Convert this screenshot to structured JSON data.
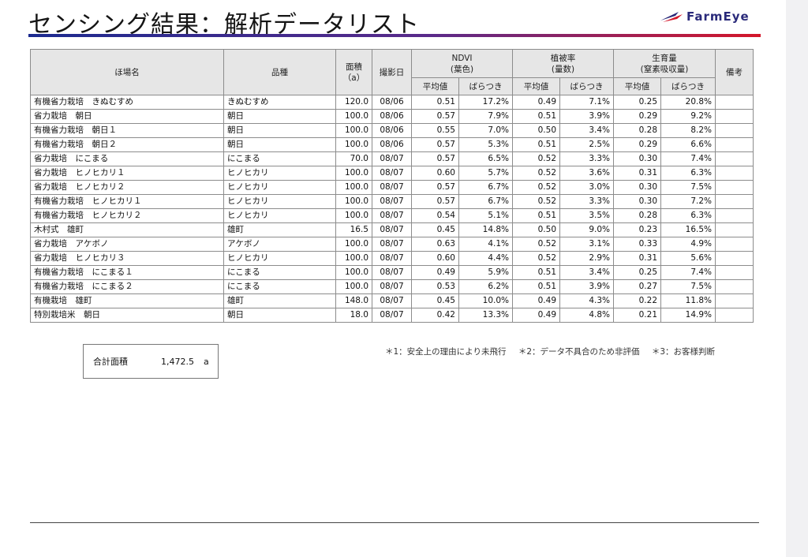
{
  "title": "センシング結果：解析データリスト",
  "logo_text": "FarmEye",
  "colors": {
    "ndvi": "#1d9a3a",
    "cover": "#f18a14",
    "growth": "#1f63c2"
  },
  "headers": {
    "field": "ほ場名",
    "variety": "品種",
    "area": "面積\n（a）",
    "date": "撮影日",
    "ndvi": "NDVI\n(葉色)",
    "cover": "植被率\n(量数)",
    "growth": "生育量\n(窒素吸収量)",
    "remarks": "備考",
    "avg": "平均値",
    "var": "ばらつき"
  },
  "rows": [
    {
      "field": "有機省力栽培　きぬむすめ",
      "variety": "きぬむすめ",
      "area": "120.0",
      "date": "08/06",
      "ndvi_avg": "0.51",
      "ndvi_var": "17.2%",
      "cover_avg": "0.49",
      "cover_var": "7.1%",
      "growth_avg": "0.25",
      "growth_var": "20.8%"
    },
    {
      "field": "省力栽培　朝日",
      "variety": "朝日",
      "area": "100.0",
      "date": "08/06",
      "ndvi_avg": "0.57",
      "ndvi_var": "7.9%",
      "cover_avg": "0.51",
      "cover_var": "3.9%",
      "growth_avg": "0.29",
      "growth_var": "9.2%"
    },
    {
      "field": "有機省力栽培　朝日１",
      "variety": "朝日",
      "area": "100.0",
      "date": "08/06",
      "ndvi_avg": "0.55",
      "ndvi_var": "7.0%",
      "cover_avg": "0.50",
      "cover_var": "3.4%",
      "growth_avg": "0.28",
      "growth_var": "8.2%"
    },
    {
      "field": "有機省力栽培　朝日２",
      "variety": "朝日",
      "area": "100.0",
      "date": "08/06",
      "ndvi_avg": "0.57",
      "ndvi_var": "5.3%",
      "cover_avg": "0.51",
      "cover_var": "2.5%",
      "growth_avg": "0.29",
      "growth_var": "6.6%"
    },
    {
      "field": "省力栽培　にこまる",
      "variety": "にこまる",
      "area": "70.0",
      "date": "08/07",
      "ndvi_avg": "0.57",
      "ndvi_var": "6.5%",
      "cover_avg": "0.52",
      "cover_var": "3.3%",
      "growth_avg": "0.30",
      "growth_var": "7.4%"
    },
    {
      "field": "省力栽培　ヒノヒカリ１",
      "variety": "ヒノヒカリ",
      "area": "100.0",
      "date": "08/07",
      "ndvi_avg": "0.60",
      "ndvi_var": "5.7%",
      "cover_avg": "0.52",
      "cover_var": "3.6%",
      "growth_avg": "0.31",
      "growth_var": "6.3%"
    },
    {
      "field": "省力栽培　ヒノヒカリ２",
      "variety": "ヒノヒカリ",
      "area": "100.0",
      "date": "08/07",
      "ndvi_avg": "0.57",
      "ndvi_var": "6.7%",
      "cover_avg": "0.52",
      "cover_var": "3.0%",
      "growth_avg": "0.30",
      "growth_var": "7.5%"
    },
    {
      "field": "有機省力栽培　ヒノヒカリ１",
      "variety": "ヒノヒカリ",
      "area": "100.0",
      "date": "08/07",
      "ndvi_avg": "0.57",
      "ndvi_var": "6.7%",
      "cover_avg": "0.52",
      "cover_var": "3.3%",
      "growth_avg": "0.30",
      "growth_var": "7.2%"
    },
    {
      "field": "有機省力栽培　ヒノヒカリ２",
      "variety": "ヒノヒカリ",
      "area": "100.0",
      "date": "08/07",
      "ndvi_avg": "0.54",
      "ndvi_var": "5.1%",
      "cover_avg": "0.51",
      "cover_var": "3.5%",
      "growth_avg": "0.28",
      "growth_var": "6.3%"
    },
    {
      "field": "木村式　雄町",
      "variety": "雄町",
      "area": "16.5",
      "date": "08/07",
      "ndvi_avg": "0.45",
      "ndvi_var": "14.8%",
      "cover_avg": "0.50",
      "cover_var": "9.0%",
      "growth_avg": "0.23",
      "growth_var": "16.5%"
    },
    {
      "field": "省力栽培　アケボノ",
      "variety": "アケボノ",
      "area": "100.0",
      "date": "08/07",
      "ndvi_avg": "0.63",
      "ndvi_var": "4.1%",
      "cover_avg": "0.52",
      "cover_var": "3.1%",
      "growth_avg": "0.33",
      "growth_var": "4.9%"
    },
    {
      "field": "省力栽培　ヒノヒカリ３",
      "variety": "ヒノヒカリ",
      "area": "100.0",
      "date": "08/07",
      "ndvi_avg": "0.60",
      "ndvi_var": "4.4%",
      "cover_avg": "0.52",
      "cover_var": "2.9%",
      "growth_avg": "0.31",
      "growth_var": "5.6%"
    },
    {
      "field": "有機省力栽培　にこまる１",
      "variety": "にこまる",
      "area": "100.0",
      "date": "08/07",
      "ndvi_avg": "0.49",
      "ndvi_var": "5.9%",
      "cover_avg": "0.51",
      "cover_var": "3.4%",
      "growth_avg": "0.25",
      "growth_var": "7.4%"
    },
    {
      "field": "有機省力栽培　にこまる２",
      "variety": "にこまる",
      "area": "100.0",
      "date": "08/07",
      "ndvi_avg": "0.53",
      "ndvi_var": "6.2%",
      "cover_avg": "0.51",
      "cover_var": "3.9%",
      "growth_avg": "0.27",
      "growth_var": "7.5%"
    },
    {
      "field": "有機栽培　雄町",
      "variety": "雄町",
      "area": "148.0",
      "date": "08/07",
      "ndvi_avg": "0.45",
      "ndvi_var": "10.0%",
      "cover_avg": "0.49",
      "cover_var": "4.3%",
      "growth_avg": "0.22",
      "growth_var": "11.8%"
    },
    {
      "field": "特別栽培米　朝日",
      "variety": "朝日",
      "area": "18.0",
      "date": "08/07",
      "ndvi_avg": "0.42",
      "ndvi_var": "13.3%",
      "cover_avg": "0.49",
      "cover_var": "4.8%",
      "growth_avg": "0.21",
      "growth_var": "14.9%"
    }
  ],
  "summary": {
    "label": "合計面積",
    "value": "1,472.5",
    "unit": "a"
  },
  "footnotes": [
    "＊1：安全上の理由により未飛行",
    "＊2：データ不具合のため非評価",
    "＊3：お客様判断"
  ]
}
